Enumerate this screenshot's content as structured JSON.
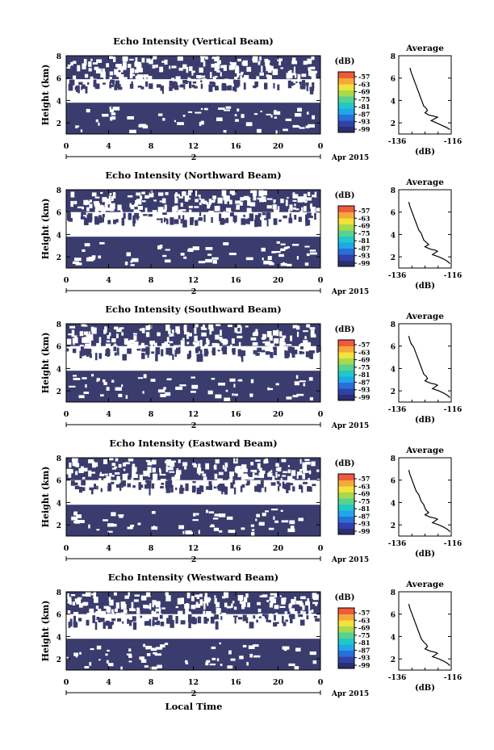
{
  "figure": {
    "xlabel": "Local Time",
    "ylabel": "Height (km)",
    "date_label": "Apr 2015",
    "day_label": "2",
    "cbar_unit": "(dB)",
    "avg_title": "Average",
    "avg_xlabel": "(dB)"
  },
  "colors": {
    "echo_fill": "#3a3c6e",
    "colorbar": [
      "#2b2f70",
      "#3141a8",
      "#2a6fd8",
      "#1fa7ea",
      "#22c8c8",
      "#59d28e",
      "#a8d94f",
      "#f2e23a",
      "#f6a93a",
      "#ef5a3b"
    ]
  },
  "chart_data": [
    {
      "type": "heatmap",
      "title": "Echo Intensity (Vertical Beam)",
      "xlim": [
        0,
        24
      ],
      "ylim": [
        1,
        8
      ],
      "xticks": [
        "0",
        "4",
        "8",
        "12",
        "16",
        "20",
        "0"
      ],
      "yticks": [
        "2",
        "4",
        "6",
        "8"
      ],
      "colorbar_ticks": [
        "-57",
        "-63",
        "-69",
        "-75",
        "-81",
        "-87",
        "-93",
        "-99"
      ],
      "echo_bands_km": [
        {
          "from": 1,
          "to": 3.8
        },
        {
          "from": 5.9,
          "to": 8
        }
      ],
      "average_profile": {
        "xlim": [
          -136,
          -115
        ],
        "xticks": [
          "-136",
          "-116"
        ],
        "ylim": [
          1,
          8
        ],
        "yticks": [
          "2",
          "4",
          "6",
          "8"
        ],
        "x": [
          -131.5,
          -131,
          -130.5,
          -130,
          -129.5,
          -129,
          -128.5,
          -128,
          -127.5,
          -127,
          -126.5,
          -126,
          -125,
          -124.5,
          -125.5,
          -124,
          -122,
          -120.5,
          -123,
          -121,
          -119,
          -117,
          -115.5
        ],
        "y": [
          6.9,
          6.5,
          6.2,
          5.9,
          5.6,
          5.3,
          5.0,
          4.7,
          4.4,
          4.1,
          3.8,
          3.5,
          3.3,
          3.1,
          2.9,
          2.7,
          2.6,
          2.5,
          2.2,
          2.0,
          1.8,
          1.6,
          1.4
        ]
      }
    },
    {
      "type": "heatmap",
      "title": "Echo Intensity (Northward Beam)",
      "xlim": [
        0,
        24
      ],
      "ylim": [
        1,
        8
      ],
      "xticks": [
        "0",
        "4",
        "8",
        "12",
        "16",
        "20",
        "0"
      ],
      "yticks": [
        "2",
        "4",
        "6",
        "8"
      ],
      "colorbar_ticks": [
        "-57",
        "-63",
        "-69",
        "-75",
        "-81",
        "-87",
        "-93",
        "-99"
      ],
      "echo_bands_km": [
        {
          "from": 1,
          "to": 3.8
        },
        {
          "from": 6.0,
          "to": 8
        }
      ],
      "average_profile": {
        "xlim": [
          -136,
          -115
        ],
        "xticks": [
          "-136",
          "-116"
        ],
        "ylim": [
          1,
          8
        ],
        "yticks": [
          "2",
          "4",
          "6",
          "8"
        ],
        "x": [
          -132,
          -131.5,
          -131,
          -130.5,
          -130,
          -129.5,
          -129,
          -128.5,
          -128,
          -127,
          -126.5,
          -126,
          -125,
          -124,
          -125.5,
          -123.5,
          -121.5,
          -120.5,
          -122.5,
          -120,
          -118,
          -116.5,
          -115.5
        ],
        "y": [
          6.9,
          6.5,
          6.2,
          5.9,
          5.6,
          5.3,
          5.0,
          4.7,
          4.4,
          4.1,
          3.8,
          3.5,
          3.3,
          3.1,
          2.9,
          2.7,
          2.6,
          2.5,
          2.2,
          2.0,
          1.8,
          1.6,
          1.4
        ]
      }
    },
    {
      "type": "heatmap",
      "title": "Echo Intensity (Southward Beam)",
      "xlim": [
        0,
        24
      ],
      "ylim": [
        1,
        8
      ],
      "xticks": [
        "0",
        "4",
        "8",
        "12",
        "16",
        "20",
        "0"
      ],
      "yticks": [
        "2",
        "4",
        "6",
        "8"
      ],
      "colorbar_ticks": [
        "-57",
        "-63",
        "-69",
        "-75",
        "-81",
        "-87",
        "-93",
        "-99"
      ],
      "echo_bands_km": [
        {
          "from": 1,
          "to": 3.8
        },
        {
          "from": 6.0,
          "to": 8
        }
      ],
      "average_profile": {
        "xlim": [
          -136,
          -115
        ],
        "xticks": [
          "-136",
          "-116"
        ],
        "ylim": [
          1,
          8
        ],
        "yticks": [
          "2",
          "4",
          "6",
          "8"
        ],
        "x": [
          -132,
          -131.5,
          -131,
          -130,
          -129.5,
          -129,
          -128.5,
          -128,
          -127.5,
          -127,
          -126.5,
          -126,
          -125,
          -124.5,
          -125.5,
          -123.5,
          -121.5,
          -120.5,
          -122.5,
          -120,
          -118,
          -116.5,
          -115.5
        ],
        "y": [
          6.9,
          6.5,
          6.2,
          5.9,
          5.6,
          5.3,
          5.0,
          4.7,
          4.4,
          4.1,
          3.8,
          3.5,
          3.3,
          3.1,
          2.9,
          2.7,
          2.6,
          2.5,
          2.2,
          2.0,
          1.8,
          1.6,
          1.4
        ]
      }
    },
    {
      "type": "heatmap",
      "title": "Echo Intensity (Eastward Beam)",
      "xlim": [
        0,
        24
      ],
      "ylim": [
        1,
        8
      ],
      "xticks": [
        "0",
        "4",
        "8",
        "12",
        "16",
        "20",
        "0"
      ],
      "yticks": [
        "2",
        "4",
        "6",
        "8"
      ],
      "colorbar_ticks": [
        "-57",
        "-63",
        "-69",
        "-75",
        "-81",
        "-87",
        "-93",
        "-99"
      ],
      "echo_bands_km": [
        {
          "from": 1,
          "to": 3.8
        },
        {
          "from": 6.0,
          "to": 8
        }
      ],
      "average_profile": {
        "xlim": [
          -136,
          -115
        ],
        "xticks": [
          "-136",
          "-116"
        ],
        "ylim": [
          1,
          8
        ],
        "yticks": [
          "2",
          "4",
          "6",
          "8"
        ],
        "x": [
          -132,
          -131.5,
          -131,
          -130.5,
          -130,
          -129.5,
          -129,
          -128,
          -127.5,
          -127,
          -126,
          -125.5,
          -125,
          -124,
          -125.5,
          -123.5,
          -121.5,
          -120.5,
          -122.5,
          -120,
          -118,
          -116.5,
          -115.5
        ],
        "y": [
          6.9,
          6.5,
          6.2,
          5.9,
          5.6,
          5.3,
          5.0,
          4.7,
          4.4,
          4.1,
          3.8,
          3.5,
          3.3,
          3.1,
          2.9,
          2.7,
          2.6,
          2.5,
          2.2,
          2.0,
          1.8,
          1.6,
          1.4
        ]
      }
    },
    {
      "type": "heatmap",
      "title": "Echo Intensity (Westward Beam)",
      "xlim": [
        0,
        24
      ],
      "ylim": [
        1,
        8
      ],
      "xticks": [
        "0",
        "4",
        "8",
        "12",
        "16",
        "20",
        "0"
      ],
      "yticks": [
        "2",
        "4",
        "6",
        "8"
      ],
      "colorbar_ticks": [
        "-57",
        "-63",
        "-69",
        "-75",
        "-81",
        "-87",
        "-93",
        "-99"
      ],
      "echo_bands_km": [
        {
          "from": 1,
          "to": 3.8
        },
        {
          "from": 6.0,
          "to": 8
        }
      ],
      "average_profile": {
        "xlim": [
          -136,
          -115
        ],
        "xticks": [
          "-136",
          "-116"
        ],
        "ylim": [
          1,
          8
        ],
        "yticks": [
          "2",
          "4",
          "6",
          "8"
        ],
        "x": [
          -132,
          -131.5,
          -131,
          -130.5,
          -130,
          -129.5,
          -129,
          -128.5,
          -128,
          -127.5,
          -127,
          -126,
          -125,
          -124.5,
          -125.5,
          -123.5,
          -121.5,
          -120.5,
          -122.5,
          -120,
          -118,
          -116.5,
          -115.5
        ],
        "y": [
          6.9,
          6.5,
          6.2,
          5.9,
          5.6,
          5.3,
          5.0,
          4.7,
          4.4,
          4.1,
          3.8,
          3.5,
          3.3,
          3.1,
          2.9,
          2.7,
          2.6,
          2.5,
          2.2,
          2.0,
          1.8,
          1.6,
          1.4
        ]
      }
    }
  ]
}
